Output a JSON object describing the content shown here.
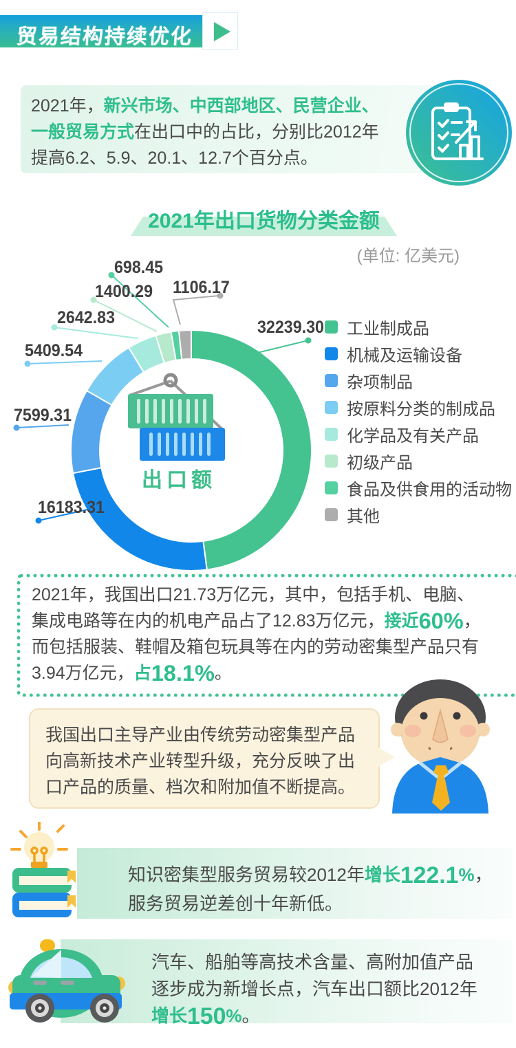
{
  "header": {
    "title": "贸易结构持续优化"
  },
  "intro": {
    "lines": [
      [
        {
          "t": "2021年，"
        },
        {
          "t": "新兴市场、中西部地区、民营企业、",
          "h": "hl"
        }
      ],
      [
        {
          "t": "一般贸易方式",
          "h": "hl"
        },
        {
          "t": "在出口中的占比，分别比2012年"
        }
      ],
      [
        {
          "t": "提高6.2、5.9、20.1、12.7个百分点。"
        }
      ]
    ]
  },
  "chart": {
    "unit_label": "(单位: 亿美元)"
  },
  "chart_data": {
    "type": "pie",
    "variant": "donut",
    "title": "2021年出口货物分类金额",
    "unit": "亿美元",
    "center_label": "出口额",
    "legend_position": "right",
    "series": [
      {
        "name": "工业制成品",
        "value": 32239.3,
        "label": "32239.30",
        "color": "#44C391"
      },
      {
        "name": "机械及运输设备",
        "value": 16183.31,
        "label": "16183.31",
        "color": "#1287EA"
      },
      {
        "name": "杂项制品",
        "value": 7599.31,
        "label": "7599.31",
        "color": "#55A6EC"
      },
      {
        "name": "按原料分类的制成品",
        "value": 5409.54,
        "label": "5409.54",
        "color": "#7CCDF4"
      },
      {
        "name": "化学品及有关产品",
        "value": 2642.83,
        "label": "2642.83",
        "color": "#A6EADD"
      },
      {
        "name": "初级产品",
        "value": 1400.29,
        "label": "1400.29",
        "color": "#B7E9CC"
      },
      {
        "name": "食品及供食用的活动物",
        "value": 698.45,
        "label": "698.45",
        "color": "#55D0A0"
      },
      {
        "name": "其他",
        "value": 1106.17,
        "label": "1106.17",
        "color": "#ADADAD"
      }
    ]
  },
  "summary_box": {
    "lines": [
      [
        {
          "t": "2021年，我国出口21.73万亿元，其中，包括手机、电脑、"
        }
      ],
      [
        {
          "t": "集成电路等在内的机电产品占了12.83万亿元，"
        },
        {
          "t": "接近",
          "h": "hl"
        },
        {
          "t": "60%",
          "h": "big"
        },
        {
          "t": "，"
        }
      ],
      [
        {
          "t": "而包括服装、鞋帽及箱包玩具等在内的劳动密集型产品只有"
        }
      ],
      [
        {
          "t": "3.94万亿元，"
        },
        {
          "t": "占",
          "h": "hl"
        },
        {
          "t": "18.1%",
          "h": "big"
        },
        {
          "t": "。"
        }
      ]
    ]
  },
  "bubble": {
    "lines": [
      [
        {
          "t": "我国出口主导产业由传统劳动密集型产品"
        }
      ],
      [
        {
          "t": "向高新技术产业转型升级，充分反映了出"
        }
      ],
      [
        {
          "t": "口产品的质量、档次和附加值不断提高。"
        }
      ]
    ]
  },
  "knowledge_item": {
    "lines": [
      [
        {
          "t": "知识密集型服务贸易较2012年"
        },
        {
          "t": "增长",
          "h": "hl"
        },
        {
          "t": "122.1",
          "h": "big"
        },
        {
          "t": "%",
          "h": "hl"
        },
        {
          "t": "，"
        }
      ],
      [
        {
          "t": "服务贸易逆差创十年新低。"
        }
      ]
    ]
  },
  "auto_item": {
    "lines": [
      [
        {
          "t": "汽车、船舶等高技术含量、高附加值产品"
        }
      ],
      [
        {
          "t": "逐步成为新增长点，汽车出口额比2012年"
        }
      ],
      [
        {
          "t": "增长",
          "h": "hl"
        },
        {
          "t": "150",
          "h": "big"
        },
        {
          "t": "%",
          "h": "hl"
        },
        {
          "t": "。"
        }
      ]
    ]
  }
}
